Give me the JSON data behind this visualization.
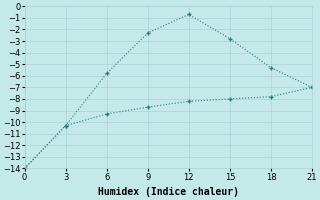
{
  "xlabel": "Humidex (Indice chaleur)",
  "line1_x": [
    0,
    3,
    6,
    9,
    12,
    15,
    18,
    21
  ],
  "line1_y": [
    -14,
    -10.3,
    -5.8,
    -2.3,
    -0.7,
    -2.8,
    -5.3,
    -7.0
  ],
  "line2_x": [
    0,
    3,
    6,
    9,
    12,
    15,
    18,
    21
  ],
  "line2_y": [
    -14,
    -10.3,
    -9.3,
    -8.7,
    -8.2,
    -8.0,
    -7.8,
    -7.0
  ],
  "color": "#2d7d7d",
  "bg_color": "#c5e8e8",
  "grid_color": "#aad4d4",
  "xlim": [
    0,
    21
  ],
  "ylim": [
    -14,
    0
  ],
  "xticks": [
    0,
    3,
    6,
    9,
    12,
    15,
    18,
    21
  ],
  "yticks": [
    0,
    -1,
    -2,
    -3,
    -4,
    -5,
    -6,
    -7,
    -8,
    -9,
    -10,
    -11,
    -12,
    -13,
    -14
  ],
  "markersize": 3,
  "linewidth": 0.8,
  "axis_fontsize": 7,
  "tick_fontsize": 6
}
